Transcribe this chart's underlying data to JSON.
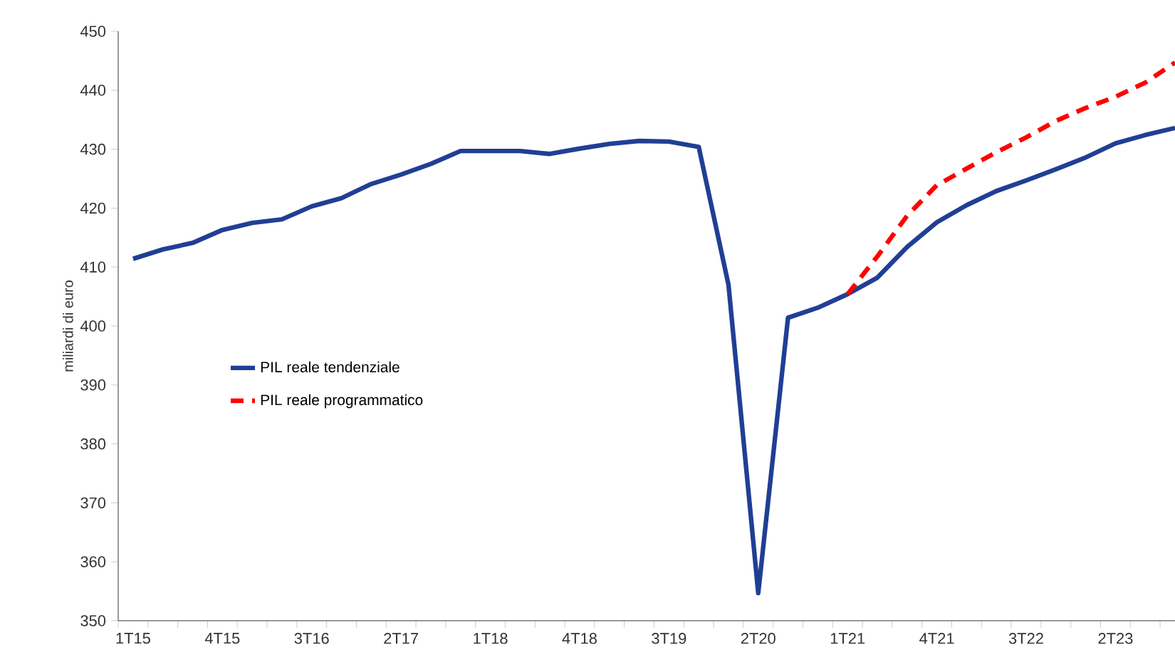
{
  "chart_data": {
    "type": "line",
    "ylabel": "miliardi di euro",
    "categories": [
      "1T15",
      null,
      null,
      "4T15",
      null,
      null,
      "3T16",
      null,
      null,
      "2T17",
      null,
      null,
      "1T18",
      null,
      null,
      "4T18",
      null,
      null,
      "3T19",
      null,
      null,
      "2T20",
      null,
      null,
      "1T21",
      null,
      null,
      "4T21",
      null,
      null,
      "3T22",
      null,
      null,
      "2T23",
      null,
      null
    ],
    "series": [
      {
        "name": "PIL reale tendenziale",
        "color": "#203f94",
        "line_style": "solid",
        "values": [
          411.4,
          413.0,
          414.1,
          416.3,
          417.5,
          418.1,
          420.3,
          421.7,
          424.1,
          425.7,
          427.5,
          429.7,
          429.7,
          429.7,
          429.2,
          430.1,
          430.9,
          431.4,
          431.3,
          430.4,
          407.0,
          354.7,
          401.4,
          403.1,
          405.4,
          408.2,
          413.4,
          417.6,
          420.5,
          422.9,
          424.7,
          426.6,
          428.6,
          431.0,
          432.4,
          433.6
        ]
      },
      {
        "name": "PIL reale programmatico",
        "color": "#ff0000",
        "line_style": "dashed",
        "values": [
          null,
          null,
          null,
          null,
          null,
          null,
          null,
          null,
          null,
          null,
          null,
          null,
          null,
          null,
          null,
          null,
          null,
          null,
          null,
          null,
          null,
          null,
          null,
          null,
          405.4,
          411.8,
          418.7,
          423.9,
          426.7,
          429.5,
          432.0,
          434.8,
          437.0,
          438.9,
          441.3,
          444.7
        ]
      }
    ],
    "ylim": [
      350,
      450
    ],
    "yticks": [
      350,
      360,
      370,
      380,
      390,
      400,
      410,
      420,
      430,
      440,
      450
    ],
    "legend": "left",
    "grid": false
  }
}
